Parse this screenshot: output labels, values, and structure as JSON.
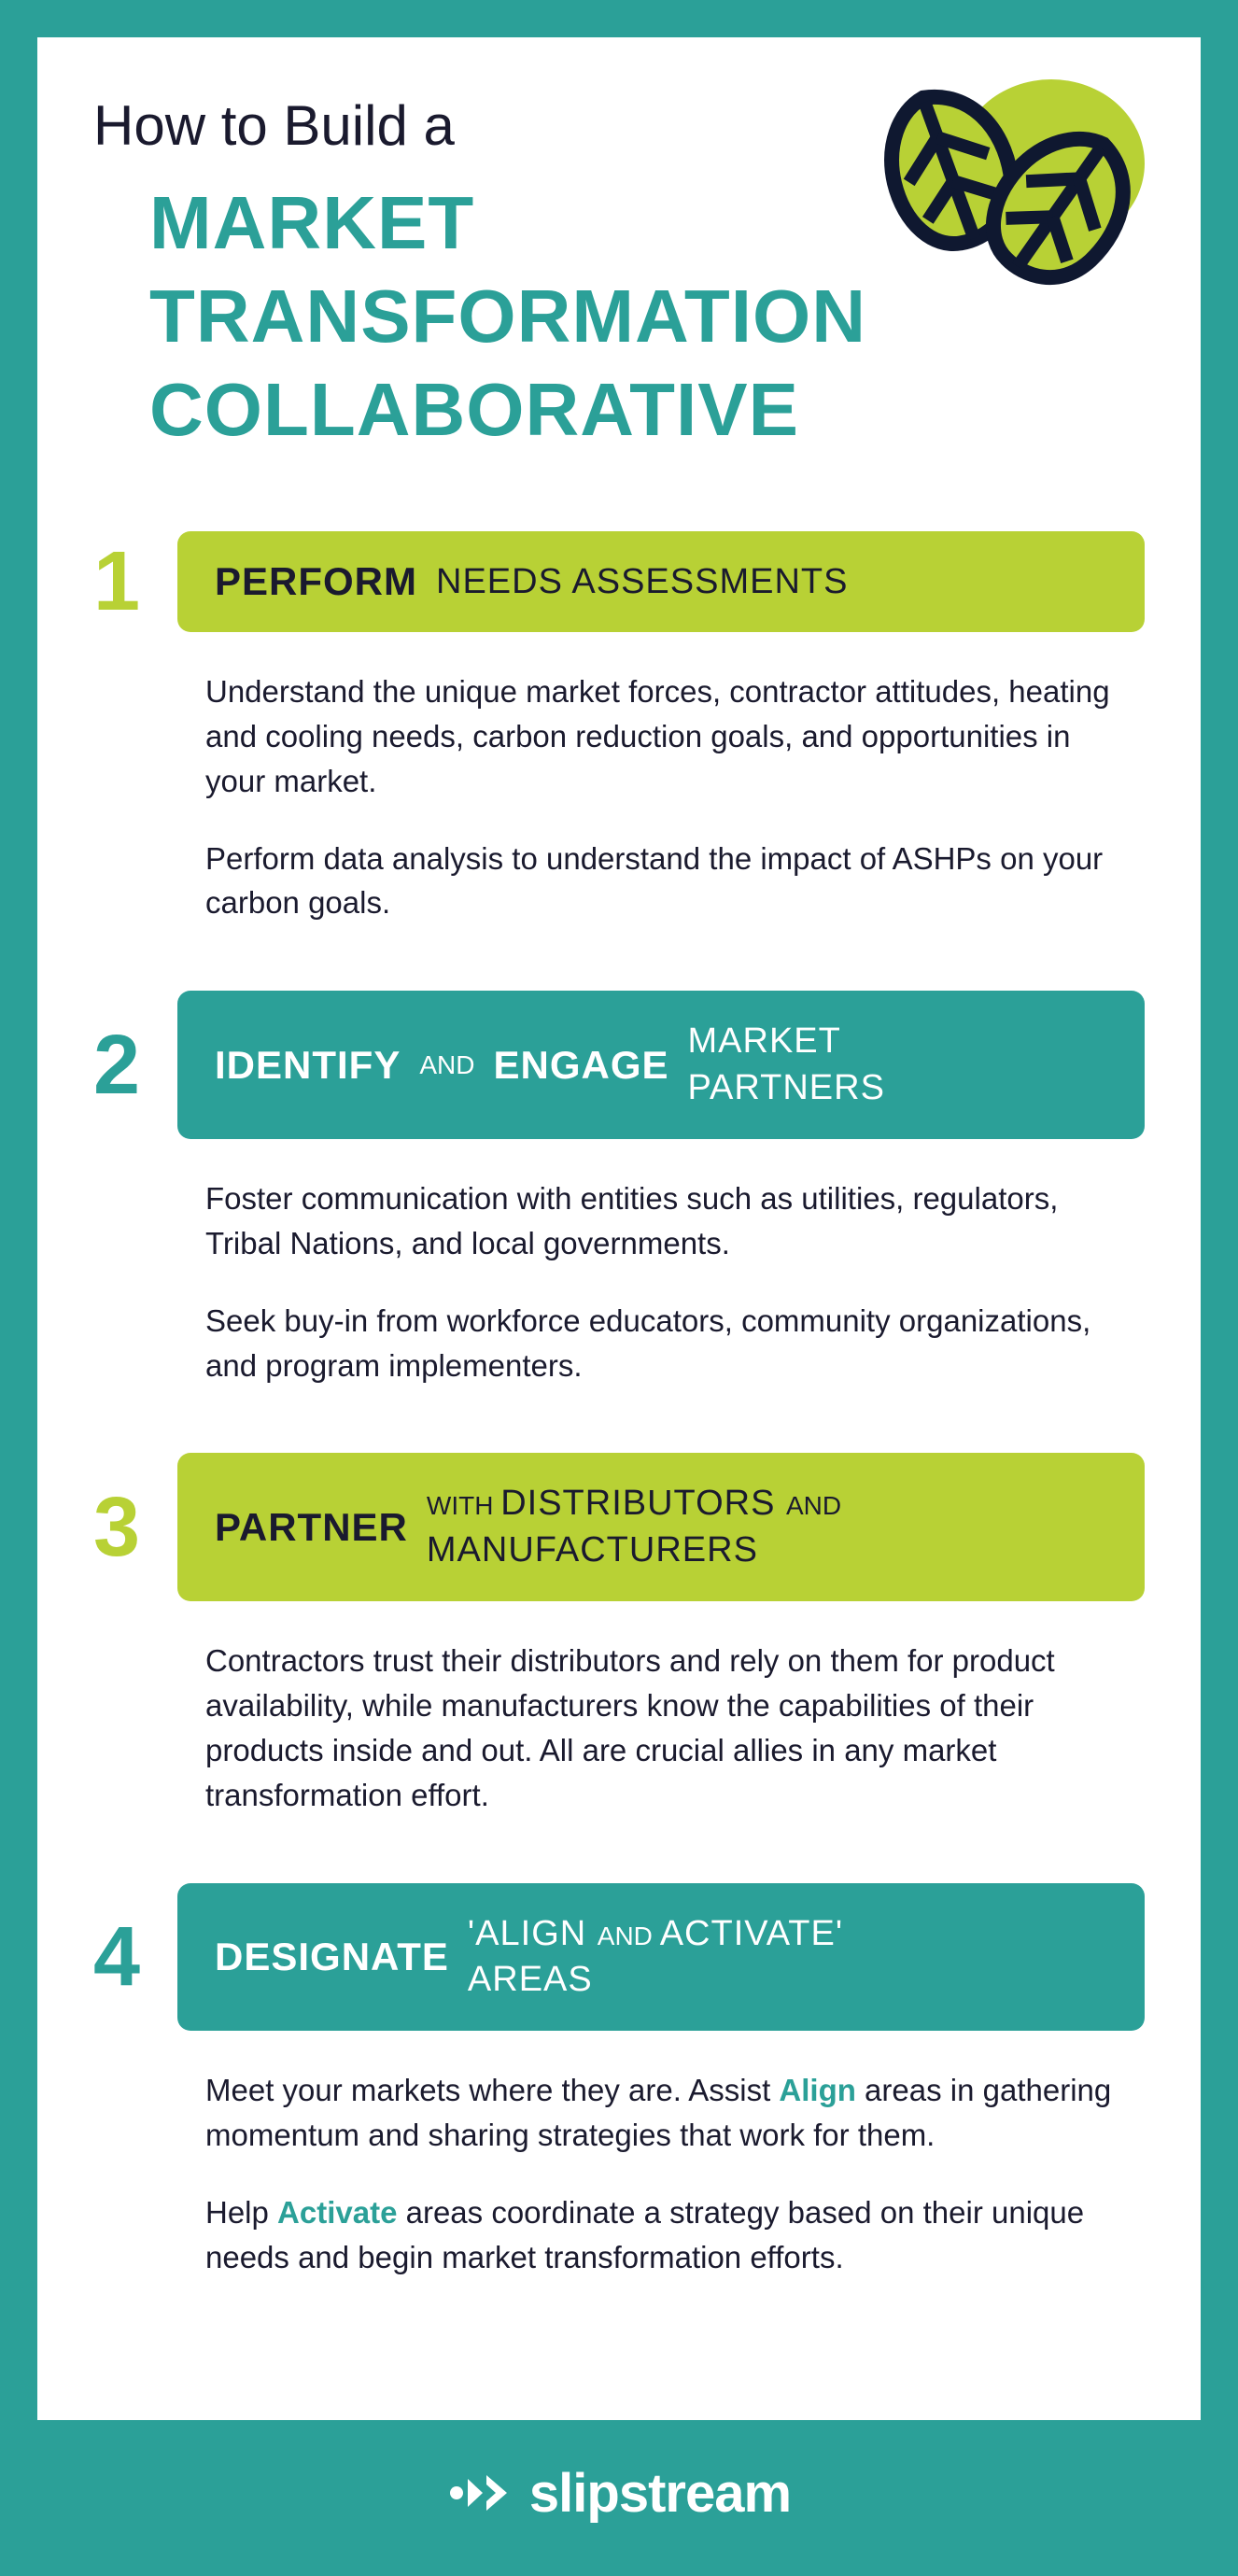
{
  "colors": {
    "teal": "#2ba098",
    "lime": "#b8d135",
    "dark": "#1a1a2e",
    "white": "#ffffff"
  },
  "header": {
    "pre_title": "How to Build a",
    "title": "MARKET TRANSFORMATION COLLABORATIVE",
    "icon_name": "leaves-icon"
  },
  "steps": [
    {
      "number": "1",
      "number_color": "lime",
      "bar_color": "green",
      "bar_parts": [
        {
          "text": "PERFORM",
          "style": "bold"
        },
        {
          "text": "NEEDS ASSESSMENTS",
          "style": "reg"
        }
      ],
      "body": [
        "Understand the unique market forces, contractor attitudes, heating and cooling needs, carbon reduction goals, and opportunities in your market.",
        "Perform data analysis to understand the impact of ASHPs on your carbon goals."
      ]
    },
    {
      "number": "2",
      "number_color": "teal",
      "bar_color": "teal",
      "bar_parts": [
        {
          "text": "IDENTIFY",
          "style": "bold"
        },
        {
          "text": "AND",
          "style": "small"
        },
        {
          "text": "ENGAGE",
          "style": "bold"
        },
        {
          "stack": [
            "MARKET",
            "PARTNERS"
          ],
          "style": "reg"
        }
      ],
      "body": [
        "Foster communication with entities such as utilities, regulators, Tribal Nations, and local governments.",
        "Seek buy-in from workforce educators, community organizations, and program implementers."
      ]
    },
    {
      "number": "3",
      "number_color": "lime",
      "bar_color": "green",
      "bar_parts": [
        {
          "text": "PARTNER",
          "style": "bold"
        },
        {
          "stack_mixed": [
            [
              {
                "t": "WITH ",
                "s": "small"
              },
              {
                "t": "DISTRIBUTORS ",
                "s": "reg"
              },
              {
                "t": "AND",
                "s": "small"
              }
            ],
            [
              {
                "t": "MANUFACTURERS",
                "s": "reg"
              }
            ]
          ]
        }
      ],
      "body": [
        "Contractors trust their distributors and rely on them for product availability, while manufacturers know the capabilities of their products inside and out. All are crucial allies in any market transformation effort."
      ]
    },
    {
      "number": "4",
      "number_color": "teal",
      "bar_color": "teal",
      "bar_parts": [
        {
          "text": "DESIGNATE",
          "style": "bold"
        },
        {
          "stack_mixed": [
            [
              {
                "t": "'ALIGN ",
                "s": "reg"
              },
              {
                "t": "AND ",
                "s": "small"
              },
              {
                "t": "ACTIVATE'",
                "s": "reg"
              }
            ],
            [
              {
                "t": "AREAS",
                "s": "reg"
              }
            ]
          ]
        }
      ],
      "body_rich": [
        [
          {
            "t": "Meet your markets where they are. Assist "
          },
          {
            "t": "Align",
            "hl": true
          },
          {
            "t": " areas in gathering momentum and sharing strategies that work for them."
          }
        ],
        [
          {
            "t": "Help "
          },
          {
            "t": "Activate",
            "hl": true
          },
          {
            "t": " areas coordinate a strategy based on their unique needs and begin market transformation efforts."
          }
        ]
      ]
    }
  ],
  "footer": {
    "brand": "slipstream"
  }
}
